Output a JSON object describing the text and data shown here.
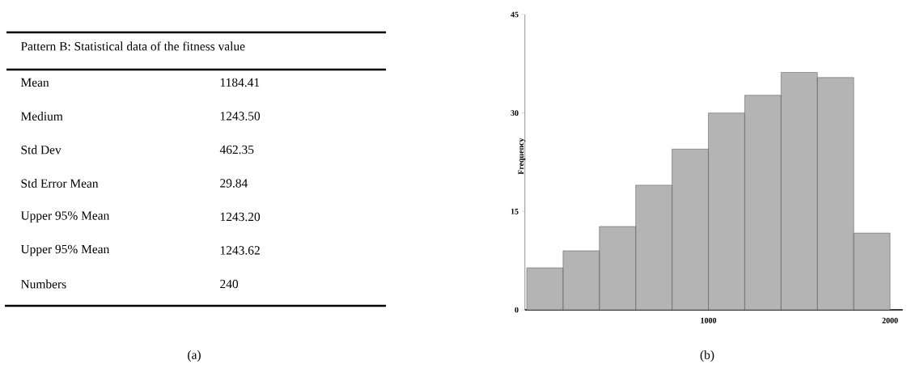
{
  "chart_data": [
    {
      "type": "other",
      "title": "Pattern B: Statistical data of the fitness value",
      "categories": [
        "Mean",
        "Medium",
        "Std Dev",
        "Std Error Mean",
        "Upper 95% Mean",
        "Upper 95% Mean",
        "Numbers"
      ],
      "value_labels": [
        "1184.41",
        "1243.50",
        "462.35",
        "29.84",
        "1243.20",
        "1243.62",
        "240"
      ],
      "annotations": [
        "(a)"
      ]
    },
    {
      "type": "histogram",
      "ylabel": "Frequency",
      "bins": [
        0,
        200,
        400,
        600,
        800,
        1000,
        1200,
        1400,
        1600,
        1800,
        2000
      ],
      "values": [
        6.4,
        9.0,
        12.7,
        19.0,
        24.5,
        30.0,
        32.7,
        36.2,
        35.4,
        11.7
      ],
      "color": "#b4b4b4",
      "xlim": [
        -10,
        2070
      ],
      "ylim": [
        0,
        45
      ],
      "xticks": [
        1000,
        2000
      ],
      "yticks": [
        0,
        15,
        30,
        45
      ],
      "annotations": [
        "(b)"
      ]
    }
  ]
}
